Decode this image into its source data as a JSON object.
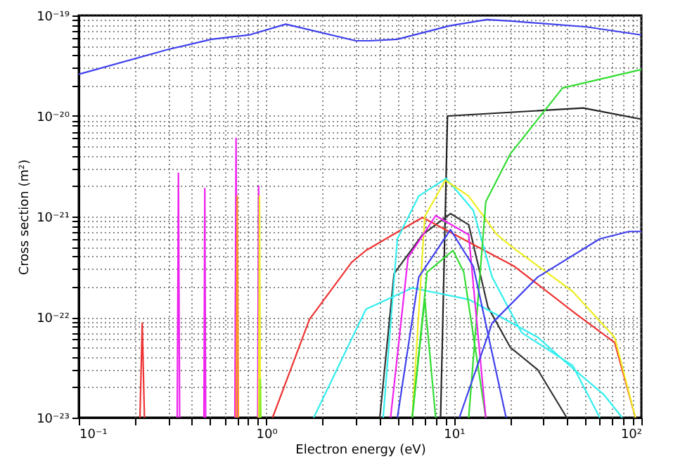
{
  "chart_data": {
    "type": "line",
    "xlabel": "Electron energy (eV)",
    "ylabel": "Cross section (m²)",
    "log": "xy",
    "grid": true,
    "marker": "none",
    "line_style": "solid",
    "xlim": [
      0.1,
      100
    ],
    "ylim": [
      1e-23,
      1e-19
    ],
    "xticks": [
      {
        "value": 0.1,
        "label": "10⁻¹"
      },
      {
        "value": 0.2,
        "label": null
      },
      {
        "value": 0.3,
        "label": null
      },
      {
        "value": 0.4,
        "label": null
      },
      {
        "value": 0.5,
        "label": null
      },
      {
        "value": 0.6,
        "label": null
      },
      {
        "value": 0.7,
        "label": null
      },
      {
        "value": 0.8,
        "label": null
      },
      {
        "value": 0.9,
        "label": null
      },
      {
        "value": 1,
        "label": "10⁰"
      },
      {
        "value": 2,
        "label": null
      },
      {
        "value": 3,
        "label": null
      },
      {
        "value": 4,
        "label": null
      },
      {
        "value": 5,
        "label": null
      },
      {
        "value": 6,
        "label": null
      },
      {
        "value": 7,
        "label": null
      },
      {
        "value": 8,
        "label": null
      },
      {
        "value": 9,
        "label": null
      },
      {
        "value": 10,
        "label": "10¹"
      },
      {
        "value": 20,
        "label": null
      },
      {
        "value": 30,
        "label": null
      },
      {
        "value": 40,
        "label": null
      },
      {
        "value": 50,
        "label": null
      },
      {
        "value": 60,
        "label": null
      },
      {
        "value": 70,
        "label": null
      },
      {
        "value": 80,
        "label": null
      },
      {
        "value": 90,
        "label": null
      },
      {
        "value": 100,
        "label": "10²"
      }
    ],
    "yticks": [
      {
        "value": 1e-23,
        "label": "10⁻²³"
      },
      {
        "value": 2e-23,
        "label": null
      },
      {
        "value": 3e-23,
        "label": null
      },
      {
        "value": 4e-23,
        "label": null
      },
      {
        "value": 5e-23,
        "label": null
      },
      {
        "value": 6e-23,
        "label": null
      },
      {
        "value": 7e-23,
        "label": null
      },
      {
        "value": 8e-23,
        "label": null
      },
      {
        "value": 9e-23,
        "label": null
      },
      {
        "value": 1e-22,
        "label": "10⁻²²"
      },
      {
        "value": 2e-22,
        "label": null
      },
      {
        "value": 3e-22,
        "label": null
      },
      {
        "value": 4e-22,
        "label": null
      },
      {
        "value": 5e-22,
        "label": null
      },
      {
        "value": 6e-22,
        "label": null
      },
      {
        "value": 7e-22,
        "label": null
      },
      {
        "value": 8e-22,
        "label": null
      },
      {
        "value": 9e-22,
        "label": null
      },
      {
        "value": 1e-21,
        "label": "10⁻²¹"
      },
      {
        "value": 2e-21,
        "label": null
      },
      {
        "value": 3e-21,
        "label": null
      },
      {
        "value": 4e-21,
        "label": null
      },
      {
        "value": 5e-21,
        "label": null
      },
      {
        "value": 6e-21,
        "label": null
      },
      {
        "value": 7e-21,
        "label": null
      },
      {
        "value": 8e-21,
        "label": null
      },
      {
        "value": 9e-21,
        "label": null
      },
      {
        "value": 1e-20,
        "label": "10⁻²⁰"
      },
      {
        "value": 2e-20,
        "label": null
      },
      {
        "value": 3e-20,
        "label": null
      },
      {
        "value": 4e-20,
        "label": null
      },
      {
        "value": 5e-20,
        "label": null
      },
      {
        "value": 6e-20,
        "label": null
      },
      {
        "value": 7e-20,
        "label": null
      },
      {
        "value": 8e-20,
        "label": null
      },
      {
        "value": 9e-20,
        "label": null
      },
      {
        "value": 1e-19,
        "label": "10⁻¹⁹"
      }
    ],
    "series": [
      {
        "color": "#4040ee",
        "x": [
          0.1,
          0.3,
          0.51,
          0.81,
          1.27,
          3.0,
          3.6,
          5.0,
          9.5,
          15,
          20,
          51,
          100
        ],
        "values": [
          2.6e-20,
          4.6e-20,
          5.8e-20,
          6.4e-20,
          8.2e-20,
          5.6e-20,
          5.6e-20,
          5.8e-20,
          7.9e-20,
          9.1e-20,
          8.8e-20,
          7.7e-20,
          6.4e-20
        ]
      },
      {
        "color": "#222222",
        "x": [
          8.5,
          9.25,
          49,
          100
        ],
        "values": [
          1e-23,
          1e-20,
          1.2e-20,
          9.3e-21
        ]
      },
      {
        "color": "#333333",
        "x": [
          4.03,
          4.8,
          6.8,
          9.6,
          12,
          15.2,
          20,
          28,
          40
        ],
        "values": [
          1e-23,
          2.7e-22,
          6.6e-22,
          1.07e-21,
          8.3e-22,
          1.26e-22,
          5e-23,
          3e-23,
          1e-23
        ]
      },
      {
        "color": "#ee3333",
        "x": [
          0.212,
          0.218,
          0.224
        ],
        "values": [
          1e-23,
          8.7e-23,
          1e-23
        ]
      },
      {
        "color": "#ee3333",
        "x": [
          1.08,
          1.7,
          2.85,
          3.4,
          6.8,
          21,
          45,
          72,
          93
        ],
        "values": [
          1e-23,
          9.5e-23,
          3.5e-22,
          4.6e-22,
          9.8e-22,
          3.2e-22,
          1.07e-22,
          5.6e-23,
          1e-23
        ]
      },
      {
        "color": "#33eeee",
        "x": [
          4.2,
          5,
          6.5,
          9.1,
          12.7,
          16,
          23,
          43,
          60
        ],
        "values": [
          1e-23,
          6e-22,
          1.6e-21,
          2.4e-21,
          1.15e-21,
          2.5e-22,
          7e-23,
          3.3e-23,
          1e-23
        ]
      },
      {
        "color": "#33eeee",
        "x": [
          1.79,
          3.4,
          6.0,
          12,
          28,
          43,
          63,
          79
        ],
        "values": [
          1e-23,
          1.2e-22,
          1.95e-22,
          1.5e-22,
          6.3e-23,
          3.1e-23,
          1.7e-23,
          1e-23
        ]
      },
      {
        "color": "#eeee22",
        "x": [
          6.0,
          7,
          9,
          12,
          17,
          21,
          43,
          72,
          93
        ],
        "values": [
          1e-23,
          1e-21,
          2.3e-21,
          1.6e-21,
          6.6e-22,
          4.8e-22,
          1.8e-22,
          6.3e-23,
          1e-23
        ]
      },
      {
        "color": "#33dd33",
        "x": [
          12,
          14.8,
          20,
          38,
          100
        ],
        "values": [
          1e-23,
          1.4e-21,
          4.2e-21,
          1.9e-20,
          2.9e-20
        ]
      },
      {
        "color": "#33dd33",
        "x": [
          6.0,
          7.2,
          9.9,
          11.3,
          14.8
        ],
        "values": [
          1e-23,
          2.8e-22,
          4.6e-22,
          2.8e-22,
          1e-23
        ]
      },
      {
        "color": "#33dd33",
        "x": [
          6.0,
          7.0,
          8.0
        ],
        "values": [
          1e-23,
          1.5e-22,
          1e-23
        ]
      },
      {
        "color": "#ee22ee",
        "x": [
          4.6,
          5.7,
          8.0,
          12,
          14.8
        ],
        "values": [
          1e-23,
          3.9e-22,
          1.02e-21,
          6.6e-22,
          1e-23
        ]
      },
      {
        "color": "#4040ee",
        "x": [
          5.0,
          6.5,
          9.6,
          12.7,
          19
        ],
        "values": [
          1e-23,
          2.5e-22,
          7.4e-22,
          3.2e-22,
          1e-23
        ]
      },
      {
        "color": "#4040ee",
        "x": [
          10.7,
          16,
          28,
          60,
          86,
          100
        ],
        "values": [
          1e-23,
          8.7e-23,
          2.5e-22,
          6e-22,
          7.1e-22,
          7.1e-22
        ]
      },
      {
        "color": "#ee22ee",
        "x": [
          0.335,
          0.34,
          0.345
        ],
        "values": [
          1e-23,
          2.7e-21,
          1e-23
        ]
      },
      {
        "color": "#ee22ee",
        "x": [
          0.465,
          0.47,
          0.475
        ],
        "values": [
          1e-23,
          1.9e-21,
          1e-23
        ]
      },
      {
        "color": "#ee22ee",
        "x": [
          0.68,
          0.69,
          0.7
        ],
        "values": [
          1e-23,
          6e-21,
          1e-23
        ]
      },
      {
        "color": "#ff9922",
        "x": [
          0.69,
          0.7,
          0.71
        ],
        "values": [
          1e-23,
          1.6e-21,
          1e-23
        ]
      },
      {
        "color": "#ee22ee",
        "x": [
          0.9,
          0.91,
          0.92
        ],
        "values": [
          1e-23,
          2e-21,
          1e-23
        ]
      },
      {
        "color": "#eeee22",
        "x": [
          0.91,
          0.92,
          0.93
        ],
        "values": [
          1e-23,
          1.6e-21,
          1e-23
        ]
      },
      {
        "color": "#88ee22",
        "x": [
          0.925,
          0.93,
          0.935
        ],
        "values": [
          1e-23,
          2.4e-23,
          1e-23
        ]
      }
    ]
  }
}
